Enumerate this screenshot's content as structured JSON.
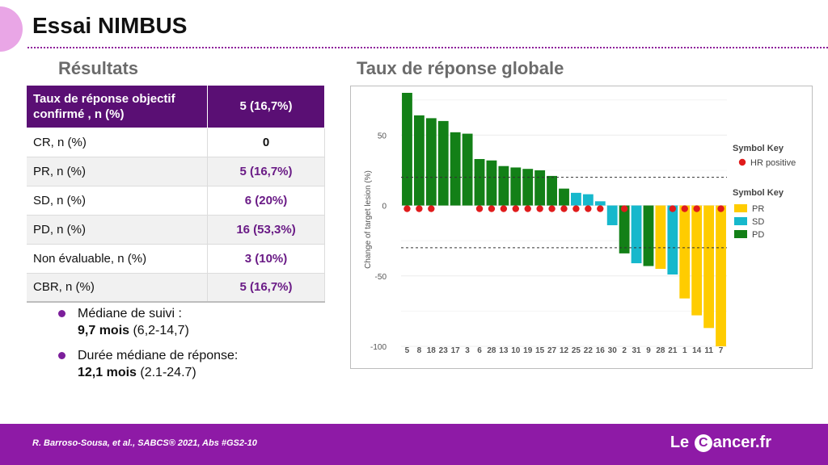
{
  "slide": {
    "title": "Essai NIMBUS"
  },
  "results": {
    "title": "Résultats",
    "header": {
      "label": "Taux de réponse objectif confirmé , n (%)",
      "value": "5 (16,7%)"
    },
    "rows": [
      {
        "label": "CR, n (%)",
        "value": "0"
      },
      {
        "label": "PR, n (%)",
        "value": "5 (16,7%)"
      },
      {
        "label": "SD, n (%)",
        "value": "6 (20%)"
      },
      {
        "label": "PD, n (%)",
        "value": "16 (53,3%)"
      },
      {
        "label": "Non évaluable, n (%)",
        "value": "3 (10%)"
      },
      {
        "label": "CBR, n (%)",
        "value": "5 (16,7%)"
      }
    ]
  },
  "bullets": [
    {
      "line1": "Médiane de suivi :",
      "bold": "9,7 mois",
      "rest": " (6,2-14,7)"
    },
    {
      "line1": "Durée médiane de réponse:",
      "bold": "12,1 mois",
      "rest": " (2.1-24.7)"
    }
  ],
  "chart_section": {
    "title": "Taux de réponse globale"
  },
  "chart_data": {
    "type": "bar",
    "ylabel": "Change of target lesion (%)",
    "ylim": [
      -100,
      80
    ],
    "yticks": [
      50,
      0,
      -50,
      -100
    ],
    "reference_lines": [
      20,
      -30
    ],
    "categories": [
      "5",
      "8",
      "18",
      "23",
      "17",
      "3",
      "6",
      "28",
      "13",
      "10",
      "19",
      "15",
      "27",
      "12",
      "25",
      "22",
      "16",
      "30",
      "2",
      "31",
      "9",
      "28",
      "21",
      "1",
      "14",
      "11",
      "7"
    ],
    "values": [
      80,
      64,
      62,
      60,
      52,
      51,
      33,
      32,
      28,
      27,
      26,
      25,
      21,
      12,
      9,
      8,
      3,
      -14,
      -34,
      -41,
      -43,
      -45,
      -49,
      -66,
      -78,
      -87,
      -100
    ],
    "response": [
      "PD",
      "PD",
      "PD",
      "PD",
      "PD",
      "PD",
      "PD",
      "PD",
      "PD",
      "PD",
      "PD",
      "PD",
      "PD",
      "PD",
      "SD",
      "SD",
      "SD",
      "SD",
      "PD",
      "SD",
      "PD",
      "PR",
      "SD",
      "PR",
      "PR",
      "PR",
      "PR"
    ],
    "hr_positive": [
      true,
      true,
      true,
      false,
      false,
      false,
      true,
      true,
      true,
      true,
      true,
      true,
      true,
      true,
      true,
      true,
      true,
      false,
      true,
      false,
      false,
      false,
      true,
      true,
      true,
      false,
      true
    ],
    "hr_key": {
      "title": "Symbol Key",
      "label": "HR positive",
      "color": "#e01b1b"
    },
    "legend": {
      "title": "Symbol Key",
      "items": [
        {
          "label": "PR",
          "color": "#ffcc00"
        },
        {
          "label": "SD",
          "color": "#16b8cc"
        },
        {
          "label": "PD",
          "color": "#138017"
        }
      ]
    },
    "legend_position": "right"
  },
  "footer": {
    "reference": "R. Barroso-Sousa, et al., SABCS® 2021, Abs #GS2-10",
    "logo_left": "Le",
    "logo_badge": "C",
    "logo_right": "ancer.fr"
  },
  "colors": {
    "accent": "#5a0f74",
    "footer": "#8e1aa6"
  }
}
